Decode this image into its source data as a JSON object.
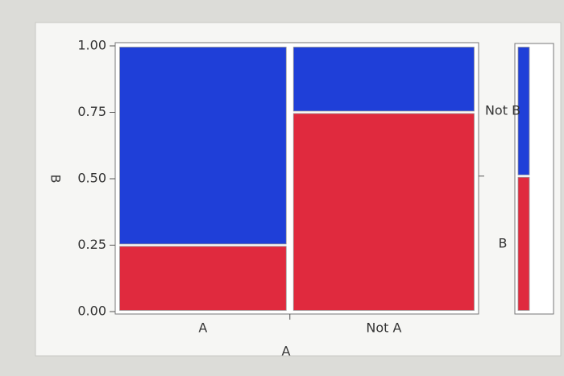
{
  "chart_data": {
    "type": "mosaic",
    "x_label": "A",
    "y_label": "B",
    "categories": [
      "A",
      "Not A"
    ],
    "column_widths": [
      0.48,
      0.52
    ],
    "series": [
      {
        "name": "B",
        "color": "#e02a3e",
        "values": [
          0.25,
          0.75
        ]
      },
      {
        "name": "Not B",
        "color": "#1f3fd8",
        "values": [
          0.75,
          0.25
        ]
      }
    ],
    "ylim": [
      0,
      1
    ],
    "yticks": [
      {
        "value": 0,
        "label": "0.00"
      },
      {
        "value": 0.25,
        "label": "0.25"
      },
      {
        "value": 0.5,
        "label": "0.50"
      },
      {
        "value": 0.75,
        "label": "0.75"
      },
      {
        "value": 1,
        "label": "1.00"
      }
    ]
  }
}
